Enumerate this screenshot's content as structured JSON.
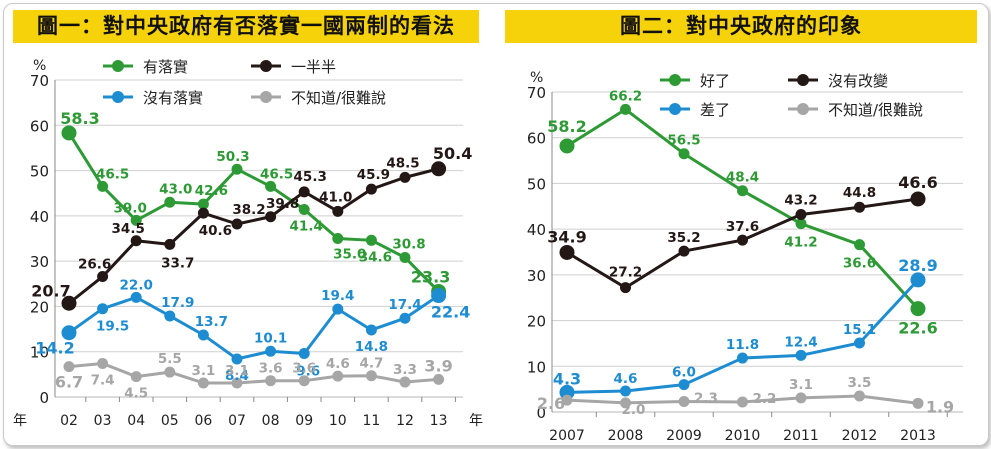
{
  "charts": [
    {
      "title": "圖一：對中央政府有否落實一國兩制的看法",
      "chart_key": "c1"
    },
    {
      "title": "圖二：對中央政府的印象",
      "chart_key": "c2"
    }
  ],
  "chart_data": [
    {
      "type": "line",
      "title": "圖一：對中央政府有否落實一國兩制的看法",
      "unit_label": "%",
      "x_unit": "年",
      "categories": [
        "02",
        "03",
        "04",
        "05",
        "06",
        "07",
        "08",
        "09",
        "10",
        "11",
        "12",
        "13"
      ],
      "ylim": [
        0,
        70
      ],
      "yticks": [
        0,
        10,
        20,
        30,
        40,
        50,
        60,
        70
      ],
      "grid": true,
      "legend_position": "top-right",
      "series": [
        {
          "name": "有落實",
          "color": "#2e9a35",
          "values": [
            58.3,
            46.5,
            39.0,
            43.0,
            42.6,
            50.3,
            46.5,
            41.4,
            35.0,
            34.6,
            30.8,
            23.3
          ]
        },
        {
          "name": "一半半",
          "color": "#231815",
          "values": [
            20.7,
            26.6,
            34.5,
            33.7,
            40.6,
            38.2,
            39.8,
            45.3,
            41.0,
            45.9,
            48.5,
            50.4
          ]
        },
        {
          "name": "沒有落實",
          "color": "#1d8cd0",
          "values": [
            14.2,
            19.5,
            22.0,
            17.9,
            13.7,
            8.4,
            10.1,
            9.6,
            19.4,
            14.8,
            17.4,
            22.4
          ]
        },
        {
          "name": "不知道/很難說",
          "color": "#a6a6a6",
          "values": [
            6.7,
            7.4,
            4.5,
            5.5,
            3.1,
            3.1,
            3.6,
            3.6,
            4.6,
            4.7,
            3.3,
            3.9
          ]
        }
      ],
      "data_labels": [
        [
          "58.3",
          "46.5",
          "39.0",
          "43.0",
          "42.6",
          "50.3",
          "46.5",
          "41.4",
          "35.0",
          "34.6",
          "30.8",
          "23.3"
        ],
        [
          "20.7",
          "26.6",
          "34.5",
          "33.7",
          "40.6",
          "38.2",
          "39.8",
          "45.3",
          "41.0",
          "45.9",
          "48.5",
          "50.4"
        ],
        [
          "14.2",
          "19.5",
          "22.0",
          "17.9",
          "13.7",
          "8.4",
          "10.1",
          "9.6",
          "19.4",
          "14.8",
          "17.4",
          "22.4"
        ],
        [
          "6.7",
          "7.4",
          "4.5",
          "5.5",
          "3.1",
          "3.1",
          "3.6",
          "3.6",
          "4.6",
          "4.7",
          "3.3",
          "3.9"
        ]
      ]
    },
    {
      "type": "line",
      "title": "圖二：對中央政府的印象",
      "unit_label": "%",
      "x_unit": "",
      "categories": [
        "2007",
        "2008",
        "2009",
        "2010",
        "2011",
        "2012",
        "2013"
      ],
      "ylim": [
        0,
        70
      ],
      "yticks": [
        0,
        10,
        20,
        30,
        40,
        50,
        60,
        70
      ],
      "grid": true,
      "legend_position": "top-right",
      "series": [
        {
          "name": "好了",
          "color": "#2e9a35",
          "values": [
            58.2,
            66.2,
            56.5,
            48.4,
            41.2,
            36.6,
            22.6
          ]
        },
        {
          "name": "沒有改變",
          "color": "#231815",
          "values": [
            34.9,
            27.2,
            35.2,
            37.6,
            43.2,
            44.8,
            46.6
          ]
        },
        {
          "name": "差了",
          "color": "#1d8cd0",
          "values": [
            4.3,
            4.6,
            6.0,
            11.8,
            12.4,
            15.1,
            28.9
          ]
        },
        {
          "name": "不知道/很難說",
          "color": "#a6a6a6",
          "values": [
            2.6,
            2.0,
            2.3,
            2.2,
            3.1,
            3.5,
            1.9
          ]
        }
      ],
      "data_labels": [
        [
          "58.2",
          "66.2",
          "56.5",
          "48.4",
          "41.2",
          "36.6",
          "22.6"
        ],
        [
          "34.9",
          "27.2",
          "35.2",
          "37.6",
          "43.2",
          "44.8",
          "46.6"
        ],
        [
          "4.3",
          "4.6",
          "6.0",
          "11.8",
          "12.4",
          "15.1",
          "28.9"
        ],
        [
          "2.6",
          "2.0",
          "2.3",
          "2.2",
          "3.1",
          "3.5",
          "1.9"
        ]
      ]
    }
  ]
}
